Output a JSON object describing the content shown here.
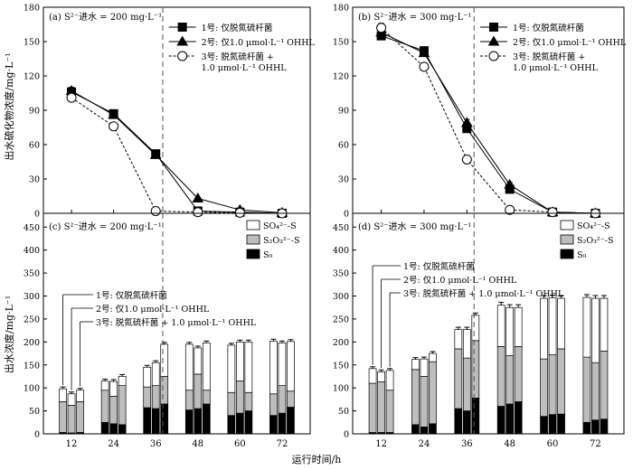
{
  "figure": {
    "ylabel_top": "出水硫化物浓度/mg·L⁻¹",
    "ylabel_bottom": "出水浓度/mg·L⁻¹",
    "xlabel": "运行时间/h"
  },
  "chart_data": [
    {
      "id": "a",
      "type": "line",
      "panel_label": "(a) S²⁻进水 = 200 mg·L⁻¹",
      "x": [
        12,
        24,
        36,
        48,
        60,
        72
      ],
      "xlim": [
        4,
        80
      ],
      "ylim": [
        0,
        180
      ],
      "yticks": [
        0,
        30,
        60,
        90,
        120,
        150,
        180
      ],
      "vline_x": 38,
      "series": [
        {
          "name": "1号: 仅脱氮硫杆菌",
          "marker": "square",
          "values": [
            106,
            87,
            52,
            2,
            1,
            0
          ],
          "errors": [
            3,
            3,
            2,
            1,
            1,
            0
          ],
          "dash": ""
        },
        {
          "name": "2号: 仅1.0 μmol·L⁻¹ OHHL",
          "marker": "triangle",
          "values": [
            107,
            86,
            51,
            13,
            3,
            0.5
          ],
          "errors": [
            3,
            3,
            2,
            1,
            1,
            0
          ],
          "dash": ""
        },
        {
          "name": "3号: 脱氮硫杆菌 + 1.0 μmol·L⁻¹ OHHL",
          "marker": "circle",
          "values": [
            101,
            76,
            2,
            1,
            0.5,
            0
          ],
          "errors": [
            4,
            3,
            1,
            1,
            0,
            0
          ],
          "dash": "3,2"
        }
      ]
    },
    {
      "id": "b",
      "type": "line",
      "panel_label": "(b) S²⁻进水 = 300 mg·L⁻¹",
      "x": [
        12,
        24,
        36,
        48,
        60,
        72
      ],
      "xlim": [
        4,
        80
      ],
      "ylim": [
        0,
        180
      ],
      "yticks": [
        0,
        30,
        60,
        90,
        120,
        150,
        180
      ],
      "vline_x": 38,
      "series": [
        {
          "name": "1号: 仅脱氮硫杆菌",
          "marker": "square",
          "values": [
            155,
            142,
            74,
            21,
            1,
            0
          ],
          "errors": [
            3,
            3,
            3,
            2,
            1,
            0
          ],
          "dash": ""
        },
        {
          "name": "2号: 仅1.0 μmol·L⁻¹ OHHL",
          "marker": "triangle",
          "values": [
            158,
            140,
            79,
            25,
            1,
            0
          ],
          "errors": [
            3,
            3,
            3,
            2,
            1,
            0
          ],
          "dash": ""
        },
        {
          "name": "3号: 脱氮硫杆菌 + 1.0 μmol·L⁻¹ OHHL",
          "marker": "circle",
          "values": [
            162,
            128,
            47,
            3,
            1,
            0
          ],
          "errors": [
            4,
            3,
            3,
            1,
            0,
            0
          ],
          "dash": "3,2"
        }
      ]
    },
    {
      "id": "c",
      "type": "bar",
      "stacked": true,
      "panel_label": "(c) S²⁻进水 = 200 mg·L⁻¹",
      "categories": [
        "12",
        "24",
        "36",
        "48",
        "60",
        "72"
      ],
      "xlim": [
        4,
        80
      ],
      "ylim": [
        0,
        480
      ],
      "yticks": [
        0,
        50,
        100,
        150,
        200,
        250,
        300,
        350,
        400,
        450
      ],
      "vline_x": 38,
      "legend": [
        "SO₄²⁻-S",
        "S₂O₃²⁻-S",
        "S₀"
      ],
      "annotations": [
        "1号: 仅脱氮硫杆菌",
        "2号: 仅1.0 μmol·L⁻¹ OHHL",
        "3号: 脱氮硫杆菌 + 1.0 μmol·L⁻¹ OHHL"
      ],
      "groups": [
        {
          "S0": [
            3,
            2,
            3
          ],
          "S2O3": [
            67,
            60,
            67
          ],
          "SO4": [
            28,
            25,
            25
          ],
          "err": [
            4,
            4,
            4
          ]
        },
        {
          "S0": [
            25,
            22,
            20
          ],
          "S2O3": [
            70,
            60,
            85
          ],
          "SO4": [
            20,
            32,
            20
          ],
          "err": [
            4,
            4,
            4
          ]
        },
        {
          "S0": [
            57,
            55,
            65
          ],
          "S2O3": [
            45,
            50,
            60
          ],
          "SO4": [
            43,
            50,
            70
          ],
          "err": [
            4,
            4,
            4
          ]
        },
        {
          "S0": [
            52,
            55,
            65
          ],
          "S2O3": [
            43,
            75,
            30
          ],
          "SO4": [
            100,
            57,
            103
          ],
          "err": [
            4,
            4,
            4
          ]
        },
        {
          "S0": [
            40,
            45,
            50
          ],
          "S2O3": [
            50,
            70,
            40
          ],
          "SO4": [
            103,
            85,
            110
          ],
          "err": [
            4,
            4,
            4
          ]
        },
        {
          "S0": [
            40,
            45,
            58
          ],
          "S2O3": [
            47,
            60,
            35
          ],
          "SO4": [
            115,
            93,
            108
          ],
          "err": [
            4,
            4,
            4
          ]
        }
      ]
    },
    {
      "id": "d",
      "type": "bar",
      "stacked": true,
      "panel_label": "(d) S²⁻进水 = 300 mg·L⁻¹",
      "categories": [
        "12",
        "24",
        "36",
        "48",
        "60",
        "72"
      ],
      "xlim": [
        4,
        80
      ],
      "ylim": [
        0,
        480
      ],
      "yticks": [
        0,
        50,
        100,
        150,
        200,
        250,
        300,
        350,
        400,
        450
      ],
      "vline_x": 38,
      "legend": [
        "SO₄²⁻-S",
        "S₂O₃²⁻-S",
        "S₀"
      ],
      "annotations": [
        "1号: 仅脱氮硫杆菌",
        "2号: 仅1.0 μmol·L⁻¹ OHHL",
        "3号: 脱氮硫杆菌 + 1.0 μmol·L⁻¹ OHHL"
      ],
      "groups": [
        {
          "S0": [
            3,
            3,
            3
          ],
          "S2O3": [
            107,
            110,
            92
          ],
          "SO4": [
            32,
            22,
            43
          ],
          "err": [
            4,
            4,
            4
          ]
        },
        {
          "S0": [
            20,
            15,
            22
          ],
          "S2O3": [
            120,
            110,
            135
          ],
          "SO4": [
            22,
            38,
            18
          ],
          "err": [
            4,
            4,
            4
          ]
        },
        {
          "S0": [
            55,
            50,
            78
          ],
          "S2O3": [
            130,
            115,
            125
          ],
          "SO4": [
            42,
            62,
            55
          ],
          "err": [
            5,
            5,
            5
          ]
        },
        {
          "S0": [
            60,
            65,
            70
          ],
          "S2O3": [
            130,
            105,
            120
          ],
          "SO4": [
            90,
            105,
            85
          ],
          "err": [
            6,
            6,
            6
          ]
        },
        {
          "S0": [
            38,
            42,
            43
          ],
          "S2O3": [
            125,
            130,
            142
          ],
          "SO4": [
            132,
            124,
            110
          ],
          "err": [
            6,
            6,
            6
          ]
        },
        {
          "S0": [
            25,
            30,
            32
          ],
          "S2O3": [
            142,
            125,
            148
          ],
          "SO4": [
            130,
            140,
            115
          ],
          "err": [
            6,
            6,
            6
          ]
        }
      ]
    }
  ]
}
